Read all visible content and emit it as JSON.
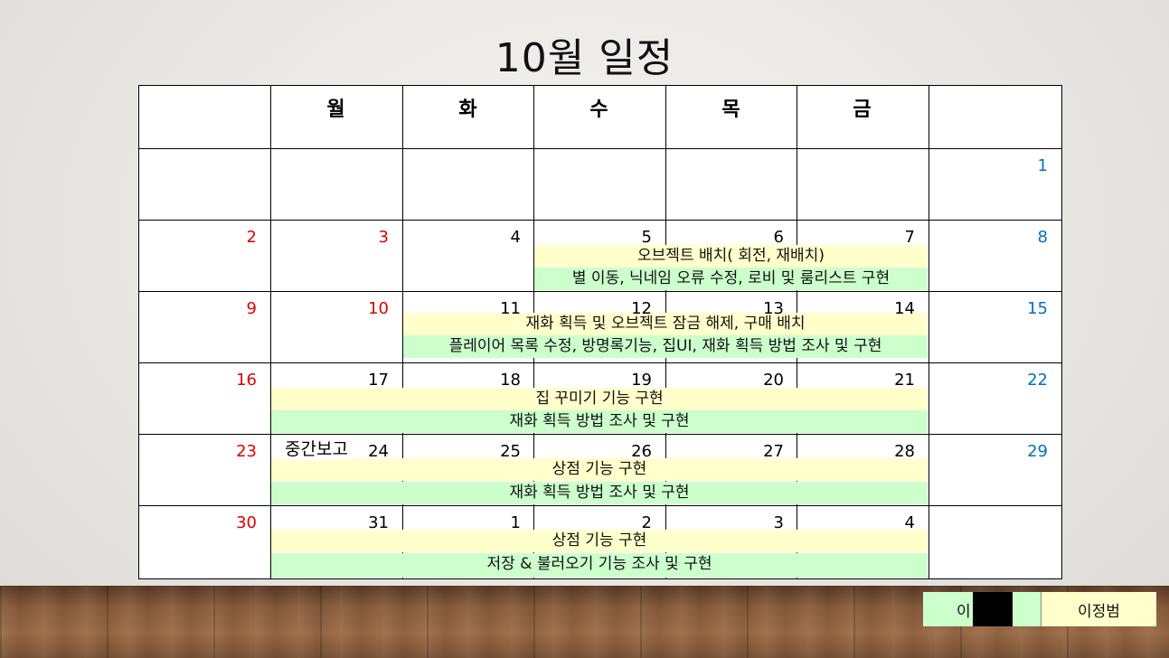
{
  "title": "10월 일정",
  "weekday_headers": [
    "",
    "월",
    "화",
    "수",
    "목",
    "금",
    ""
  ],
  "weeks": [
    {
      "days": [
        "",
        "",
        "",
        "",
        "",
        "",
        "1"
      ]
    },
    {
      "days": [
        "2",
        "3",
        "4",
        "5",
        "6",
        "7",
        "8"
      ]
    },
    {
      "days": [
        "9",
        "10",
        "11",
        "12",
        "13",
        "14",
        "15"
      ]
    },
    {
      "days": [
        "16",
        "17",
        "18",
        "19",
        "20",
        "21",
        "22"
      ]
    },
    {
      "days": [
        "23",
        "24",
        "25",
        "26",
        "27",
        "28",
        "29"
      ]
    },
    {
      "days": [
        "30",
        "31",
        "1",
        "2",
        "3",
        "4",
        ""
      ]
    }
  ],
  "events": {
    "w2_a": "오브젝트 배치( 회전, 재배치)",
    "w2_b": "별 이동, 닉네임 오류 수정, 로비 및 룸리스트 구현",
    "w3_a": "재화 획득 및 오브젝트 잠금 해제, 구매 배치",
    "w3_b": "플레이어 목록 수정, 방명록기능, 집UI, 재화 획득 방법 조사 및 구현",
    "w4_a": "집 꾸미기 기능 구현",
    "w4_b": "재화 획득 방법 조사 및 구현",
    "w5_a": "상점 기능 구현",
    "w5_b": "재화 획득 방법 조사 및 구현",
    "w6_a": "상점 기능 구현",
    "w6_b": "저장  & 불러오기 기능 조사 및 구현"
  },
  "note": "중간보고",
  "footer": {
    "left_name": "이",
    "right_name": "이정범"
  },
  "colors": {
    "sunday": "#e00000",
    "saturday": "#0070c0",
    "bar_yellow": "#ffffcc",
    "bar_green": "#ccffcc"
  }
}
